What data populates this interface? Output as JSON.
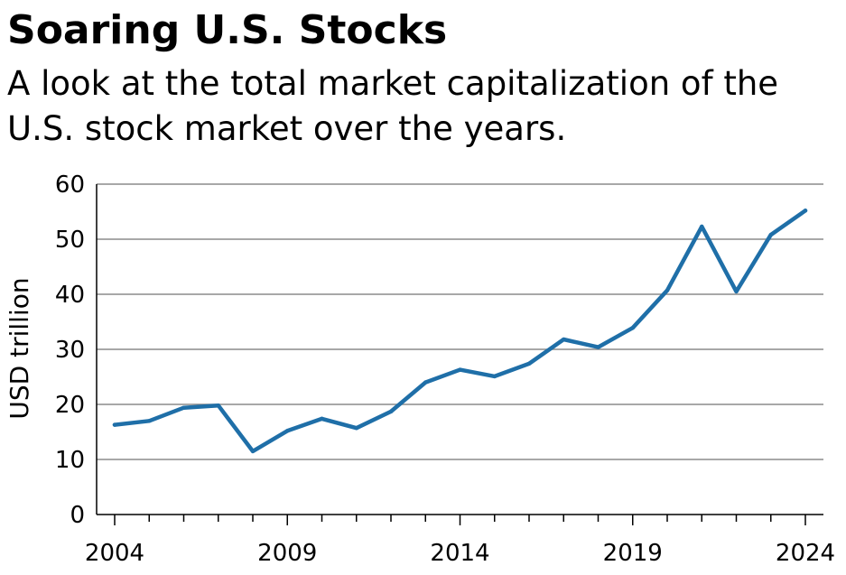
{
  "chart_data": {
    "type": "line",
    "title": "Soaring U.S. Stocks",
    "subtitle": "A look at the total market capitalization of the U.S. stock market over the years.",
    "xlabel": "",
    "ylabel": "USD trillion",
    "xlim": [
      2004,
      2024
    ],
    "ylim": [
      0,
      60
    ],
    "x_ticks": [
      2004,
      2009,
      2014,
      2019,
      2024
    ],
    "y_ticks": [
      0,
      10,
      20,
      30,
      40,
      50,
      60
    ],
    "grid": "horizontal",
    "line_color": "#1f6fa8",
    "series": [
      {
        "name": "Total market capitalization",
        "x": [
          2004,
          2005,
          2006,
          2007,
          2008,
          2009,
          2010,
          2011,
          2012,
          2013,
          2014,
          2015,
          2016,
          2017,
          2018,
          2019,
          2020,
          2021,
          2022,
          2023,
          2024
        ],
        "values": [
          16.3,
          17.0,
          19.4,
          19.8,
          11.5,
          15.2,
          17.4,
          15.7,
          18.7,
          24.0,
          26.3,
          25.1,
          27.4,
          31.8,
          30.4,
          33.9,
          40.7,
          52.3,
          40.5,
          50.8,
          55.2
        ]
      }
    ]
  }
}
